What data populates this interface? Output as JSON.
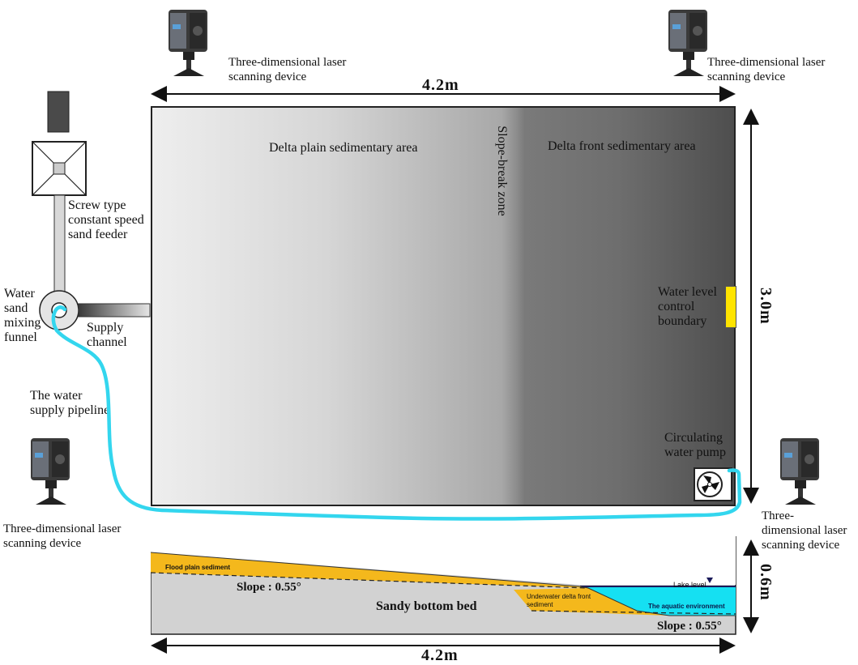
{
  "scanner_label": "Three-dimensional laser scanning device",
  "scanner_label_line1": "Three-dimensional laser",
  "scanner_label_line2": "scanning device",
  "scanner_br_line1": "Three-",
  "scanner_br_line2": "dimensional laser",
  "scanner_br_line3": "scanning device",
  "top_width": "4.2m",
  "bottom_width": "4.2m",
  "height_plan": "3.0m",
  "height_section": "0.6m",
  "areas": {
    "plain": "Delta plain sedimentary area",
    "slope_break": "Slope-break zone",
    "front": "Delta front sedimentary area"
  },
  "feeder": {
    "line1": "Screw type",
    "line2": "constant speed",
    "line3": "sand feeder"
  },
  "funnel": {
    "line1": "Water",
    "line2": "sand",
    "line3": "mixing",
    "line4": "funnel"
  },
  "supply_channel": {
    "line1": "Supply",
    "line2": "channel"
  },
  "pipeline": {
    "line1": "The water",
    "line2": "supply pipeline"
  },
  "water_level": {
    "line1": "Water level",
    "line2": "control",
    "line3": "boundary"
  },
  "pump": {
    "line1": "Circulating",
    "line2": "water pump"
  },
  "section": {
    "flood_plain": "Flood plain sediment",
    "slope_left": "Slope : 0.55°",
    "sandy_bed": "Sandy bottom bed",
    "underwater_line1": "Underwater delta front",
    "underwater_line2": "sediment",
    "aquatic": "The aquatic environment",
    "lake_level": "Lake level",
    "slope_right": "Slope : 0.55°"
  },
  "colors": {
    "pipeline": "#33d6ee",
    "sediment": "#f4b81c",
    "water": "#15e0f2",
    "boundary": "#ffe400",
    "bed": "#d2d2d2"
  }
}
